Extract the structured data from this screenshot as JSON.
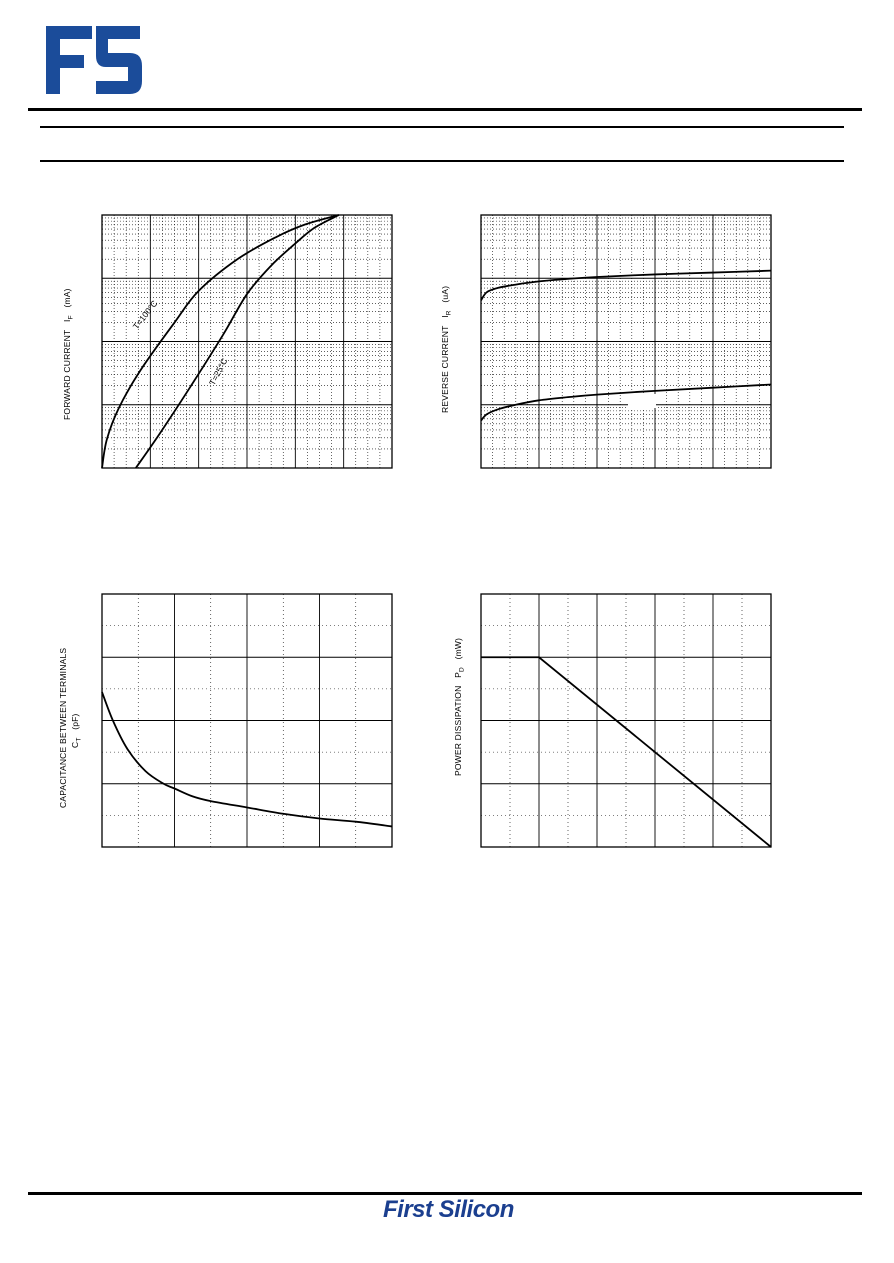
{
  "brand": {
    "logo_letters": "FS",
    "logo_color": "#1b4c9a",
    "footer_text": "First Silicon",
    "footer_color": "#1b3f8f"
  },
  "charts": {
    "forward": {
      "ylabel_main": "FORWARD CURRENT",
      "ylabel_sym": "I",
      "ylabel_sub": "F",
      "ylabel_unit": "(mA)",
      "curve_labels": [
        "T=100°C",
        "T=25°C"
      ]
    },
    "reverse": {
      "ylabel_main": "REVERSE CURRENT",
      "ylabel_sym": "I",
      "ylabel_sub": "R",
      "ylabel_unit": "(uA)"
    },
    "capacitance": {
      "ylabel_line1": "CAPACITANCE BETWEEN TERMINALS",
      "ylabel_sym": "C",
      "ylabel_sub": "T",
      "ylabel_unit": "(pF)"
    },
    "power": {
      "ylabel_main": "POWER DISSIPATION",
      "ylabel_sym": "P",
      "ylabel_sub": "D",
      "ylabel_unit": "(mW)"
    }
  },
  "chart_data": [
    {
      "type": "line",
      "title": "",
      "xlabel": "",
      "ylabel": "FORWARD CURRENT I F (mA)",
      "yscale": "log",
      "decades": 4,
      "xlim": [
        0,
        6
      ],
      "ylim": [
        0,
        4
      ],
      "grid": true,
      "series": [
        {
          "name": "T=100°C",
          "x": [
            0,
            0.1,
            0.35,
            0.8,
            1.5,
            2.0,
            2.8,
            3.6,
            4.2,
            4.9
          ],
          "y": [
            0,
            0.45,
            0.95,
            1.55,
            2.3,
            2.8,
            3.3,
            3.65,
            3.85,
            4.0
          ]
        },
        {
          "name": "T=25°C",
          "x": [
            0.7,
            1.2,
            1.8,
            2.5,
            3.0,
            3.5,
            4.0,
            4.4,
            4.9
          ],
          "y": [
            0,
            0.55,
            1.25,
            2.1,
            2.75,
            3.2,
            3.55,
            3.8,
            4.0
          ]
        }
      ]
    },
    {
      "type": "line",
      "title": "",
      "xlabel": "",
      "ylabel": "REVERSE CURRENT I R (uA)",
      "yscale": "log",
      "decades": 4,
      "xlim": [
        0,
        5
      ],
      "ylim": [
        0,
        4
      ],
      "grid": true,
      "series": [
        {
          "x": [
            0,
            0.1,
            0.3,
            0.6,
            1.0,
            1.5,
            2.0,
            3.0,
            4.0,
            5.0
          ],
          "y": [
            2.65,
            2.78,
            2.85,
            2.9,
            2.95,
            2.99,
            3.02,
            3.06,
            3.09,
            3.12
          ]
        },
        {
          "x": [
            0,
            0.1,
            0.3,
            0.6,
            1.0,
            1.5,
            2.0,
            3.0,
            4.0,
            5.0
          ],
          "y": [
            0.75,
            0.85,
            0.93,
            1.0,
            1.07,
            1.12,
            1.16,
            1.22,
            1.27,
            1.32
          ]
        }
      ]
    },
    {
      "type": "line",
      "title": "",
      "xlabel": "",
      "ylabel": "CAPACITANCE BETWEEN TERMINALS C T (pF)",
      "xlim": [
        0,
        8
      ],
      "ylim": [
        0,
        8
      ],
      "grid": true,
      "series": [
        {
          "x": [
            0,
            0.3,
            0.7,
            1.2,
            1.7,
            2.0,
            2.5,
            3.0,
            4.0,
            5.0,
            6.0,
            7.0,
            8.0
          ],
          "y": [
            4.9,
            4.0,
            3.1,
            2.4,
            2.0,
            1.85,
            1.6,
            1.45,
            1.25,
            1.05,
            0.9,
            0.8,
            0.65
          ]
        }
      ]
    },
    {
      "type": "line",
      "title": "",
      "xlabel": "",
      "ylabel": "POWER DISSIPATION P D (mW)",
      "xlim": [
        0,
        10
      ],
      "ylim": [
        0,
        8
      ],
      "grid": true,
      "series": [
        {
          "x": [
            0,
            2,
            10
          ],
          "y": [
            6,
            6,
            0
          ]
        }
      ]
    }
  ]
}
